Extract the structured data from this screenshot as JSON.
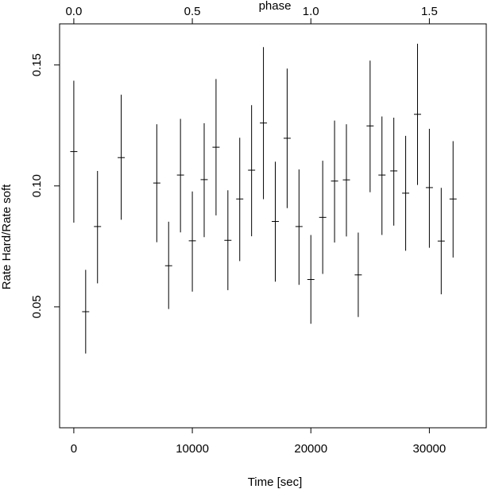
{
  "chart_data": {
    "type": "scatter",
    "title": "",
    "xlabel": "Time [sec]",
    "ylabel": "Rate Hard/Rate soft",
    "x2label": "phase",
    "xlim": [
      -1200,
      34800
    ],
    "ylim": [
      0.0,
      0.167
    ],
    "x_ticks": [
      0,
      10000,
      20000,
      30000
    ],
    "x_tick_labels": [
      "0",
      "10000",
      "20000",
      "30000"
    ],
    "y_ticks": [
      0.05,
      0.1,
      0.15
    ],
    "y_tick_labels": [
      "0.05",
      "0.10",
      "0.15"
    ],
    "x2_ticks": [
      0.0,
      0.5,
      1.0,
      1.5
    ],
    "x2_tick_labels": [
      "0.0",
      "0.5",
      "1.0",
      "1.5"
    ],
    "phase_per_sec": 5e-05,
    "x_errbar_halfwidth": 300,
    "grid": false,
    "legend": "none",
    "series": [
      {
        "x": [
          0,
          1000,
          2000,
          4000,
          7000,
          8000,
          9000,
          10000,
          11000,
          12000,
          13000,
          14000,
          15000,
          16000,
          17000,
          18000,
          19000,
          20000,
          21000,
          22000,
          23000,
          24000,
          25000,
          26000,
          27000,
          28000,
          29000,
          30000,
          31000,
          32000
        ],
        "y": [
          0.1142,
          0.048,
          0.0832,
          0.1117,
          0.1012,
          0.067,
          0.1045,
          0.0773,
          0.1026,
          0.116,
          0.0775,
          0.0946,
          0.1065,
          0.126,
          0.0853,
          0.1197,
          0.0832,
          0.0613,
          0.087,
          0.102,
          0.1025,
          0.0632,
          0.1248,
          0.1045,
          0.1062,
          0.097,
          0.1296,
          0.0993,
          0.0772,
          0.0946
        ],
        "y_low": [
          0.0848,
          0.0307,
          0.0597,
          0.086,
          0.0767,
          0.0491,
          0.0808,
          0.0563,
          0.0788,
          0.0878,
          0.0569,
          0.0689,
          0.0792,
          0.0945,
          0.0604,
          0.0908,
          0.0591,
          0.043,
          0.0636,
          0.0766,
          0.0791,
          0.0458,
          0.0974,
          0.0797,
          0.0836,
          0.0732,
          0.1004,
          0.0744,
          0.0552,
          0.0704
        ],
        "y_high": [
          0.1435,
          0.0653,
          0.1062,
          0.1377,
          0.1255,
          0.0852,
          0.1277,
          0.0977,
          0.1259,
          0.1442,
          0.0982,
          0.1199,
          0.1334,
          0.1574,
          0.11,
          0.1485,
          0.1068,
          0.0797,
          0.1104,
          0.127,
          0.1255,
          0.0807,
          0.1518,
          0.1287,
          0.1282,
          0.1207,
          0.1588,
          0.1236,
          0.0992,
          0.1185
        ]
      }
    ]
  },
  "colors": {
    "ink": "#000000",
    "background": "#ffffff"
  }
}
